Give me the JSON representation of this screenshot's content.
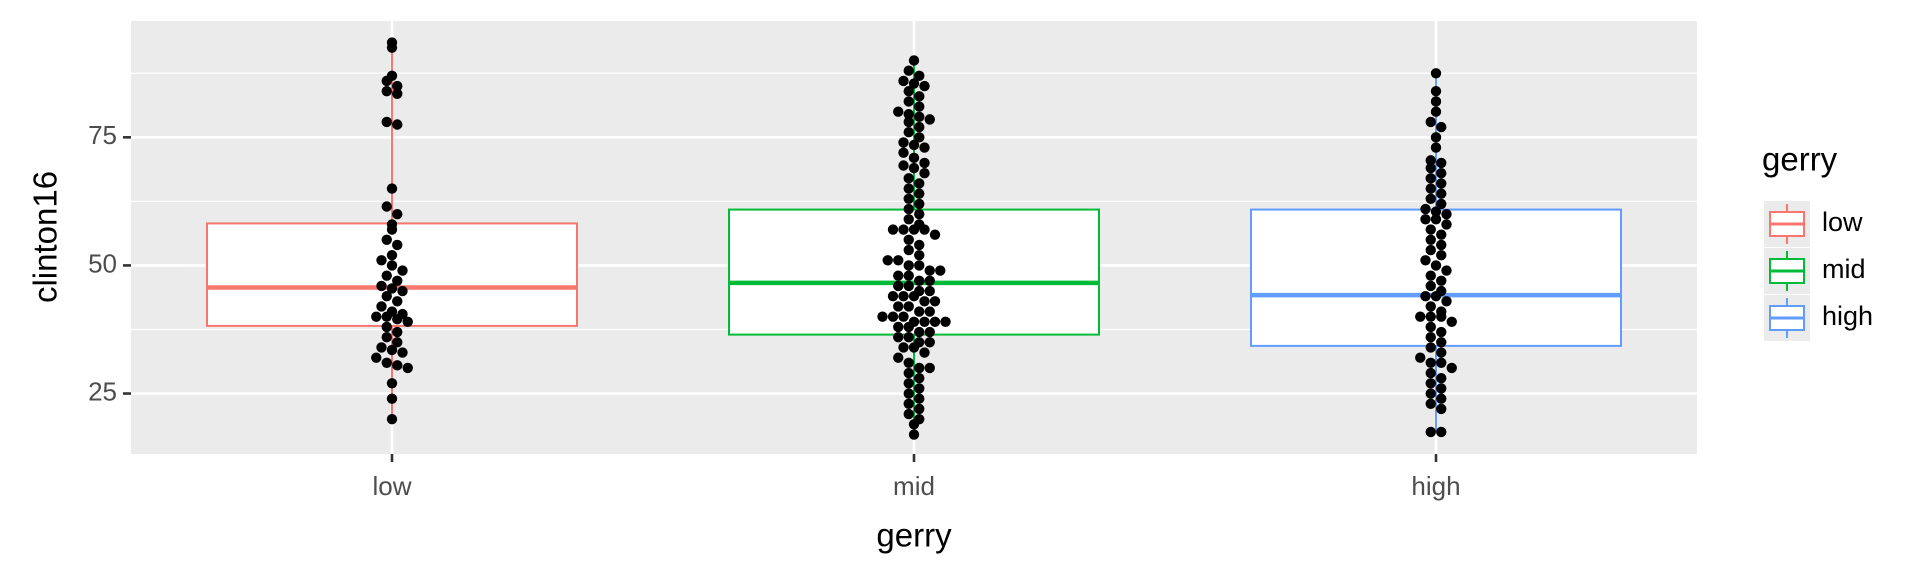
{
  "chart_data": {
    "type": "boxplot-dotplot",
    "y_label": "clinton16",
    "x_label": "gerry",
    "legend_title": "gerry",
    "ylim": [
      13.2,
      97.7
    ],
    "yticks": [
      25,
      50,
      75
    ],
    "grid": true,
    "legend": "right",
    "point_color": "#000000",
    "series": [
      {
        "name": "low",
        "color": "#F8766D",
        "whisker_low": 20,
        "q1": 38.2,
        "median": 45.7,
        "q3": 58.2,
        "whisker_high": 93.5,
        "points": [
          93.5,
          92.5,
          87,
          86,
          85,
          84,
          83.5,
          78,
          77.5,
          65,
          61.5,
          60,
          58,
          57,
          55,
          54,
          52,
          51,
          50,
          49,
          48,
          47,
          46,
          45.5,
          45,
          44,
          43,
          42,
          41,
          40.5,
          40,
          40,
          39.5,
          39,
          38,
          37,
          36,
          35,
          34,
          33.5,
          33,
          32,
          31,
          30.5,
          30,
          27,
          24,
          20
        ]
      },
      {
        "name": "mid",
        "color": "#00BA38",
        "whisker_low": 17,
        "q1": 36.5,
        "median": 46.6,
        "q3": 60.9,
        "whisker_high": 90,
        "points": [
          90,
          88,
          87,
          86,
          85.5,
          85,
          84,
          83,
          82,
          81,
          80,
          79.5,
          79,
          78.5,
          78,
          77,
          76,
          75,
          74,
          73.5,
          73,
          72,
          71,
          70,
          69.5,
          69,
          68,
          67,
          66,
          65,
          64,
          63,
          62,
          61,
          60,
          59,
          58,
          57,
          57,
          57,
          57,
          56,
          55,
          54,
          53,
          52,
          51,
          51,
          50,
          50,
          49,
          49,
          48,
          48,
          47,
          47,
          46,
          46,
          45,
          45,
          44,
          44,
          44,
          43,
          43,
          42,
          42,
          41,
          41,
          40,
          40,
          40,
          39,
          39,
          39,
          39,
          38,
          38,
          37,
          37,
          36,
          36,
          35,
          35,
          34,
          34,
          33,
          32,
          31,
          30,
          30,
          29,
          28,
          27,
          26,
          25,
          24,
          23,
          22,
          21,
          20,
          19,
          17
        ]
      },
      {
        "name": "high",
        "color": "#619CFF",
        "whisker_low": 17.5,
        "q1": 34.3,
        "median": 44.2,
        "q3": 60.9,
        "whisker_high": 87.5,
        "points": [
          87.5,
          84,
          82,
          80,
          78,
          77,
          75,
          73,
          70.5,
          70,
          69,
          68,
          67,
          66,
          65,
          64,
          63,
          62,
          61,
          60.5,
          60,
          59,
          59,
          58,
          57,
          56,
          55,
          54,
          53,
          52,
          51,
          50,
          49,
          48,
          47,
          46,
          45,
          44,
          44,
          43,
          42,
          41,
          40,
          40,
          40,
          39,
          38,
          37,
          36,
          35,
          34,
          33,
          32,
          31,
          31,
          30,
          29,
          28,
          27,
          26,
          25,
          24,
          23,
          22,
          17.5,
          17.5
        ]
      }
    ]
  }
}
